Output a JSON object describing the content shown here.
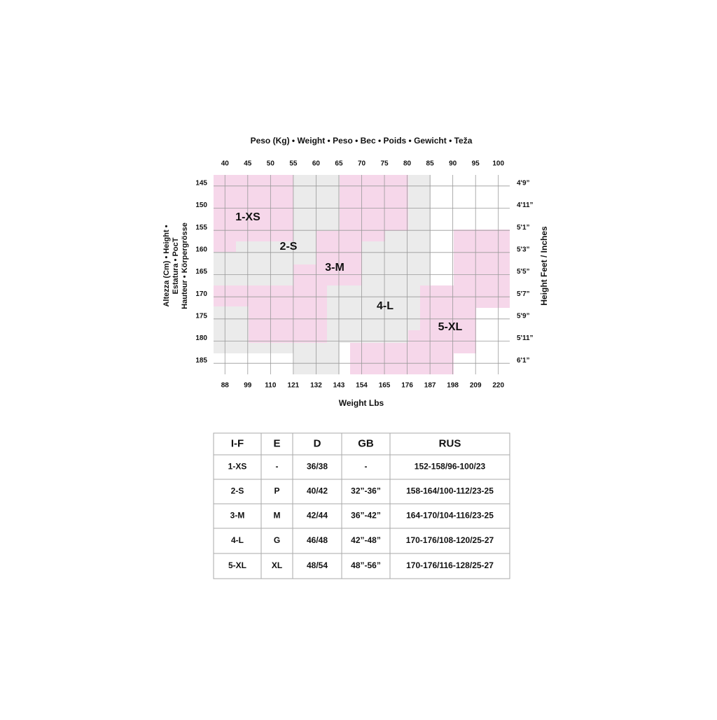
{
  "header": {
    "title": "Peso (Kg) • Weight • Peso • Bec • Poids • Gewicht • Teža"
  },
  "kg_ticks": [
    40,
    45,
    50,
    55,
    60,
    65,
    70,
    75,
    80,
    85,
    90,
    95,
    100
  ],
  "lbs_ticks": [
    88,
    99,
    110,
    121,
    132,
    143,
    154,
    165,
    176,
    187,
    198,
    209,
    220
  ],
  "lbs_title": "Weight Lbs",
  "cm_ticks": [
    145,
    150,
    155,
    160,
    165,
    170,
    175,
    180,
    185
  ],
  "height_title": [
    "Altezza (Cm) • Height •",
    "Estatura • PocT",
    "Hauteur • Körpergrösse"
  ],
  "feet_ticks": [
    "4'9”",
    "4'11”",
    "5'1”",
    "5'3”",
    "5'5”",
    "5'7”",
    "5'9”",
    "5'11”",
    "6'1”"
  ],
  "feet_title": "Height Feet / Inches",
  "sizes": [
    "1-XS",
    "2-S",
    "3-M",
    "4-L",
    "5-XL"
  ],
  "table": {
    "header": [
      "I-F",
      "E",
      "D",
      "GB",
      "RUS"
    ],
    "rows": [
      [
        "1-XS",
        "-",
        "36/38",
        "-",
        "152-158/96-100/23"
      ],
      [
        "2-S",
        "P",
        "40/42",
        "32”-36”",
        "158-164/100-112/23-25"
      ],
      [
        "3-M",
        "M",
        "42/44",
        "36”-42”",
        "164-170/104-116/23-25"
      ],
      [
        "4-L",
        "G",
        "46/48",
        "42”-48”",
        "170-176/108-120/25-27"
      ],
      [
        "5-XL",
        "XL",
        "48/54",
        "48”-56”",
        "170-176/116-128/25-27"
      ]
    ]
  }
}
